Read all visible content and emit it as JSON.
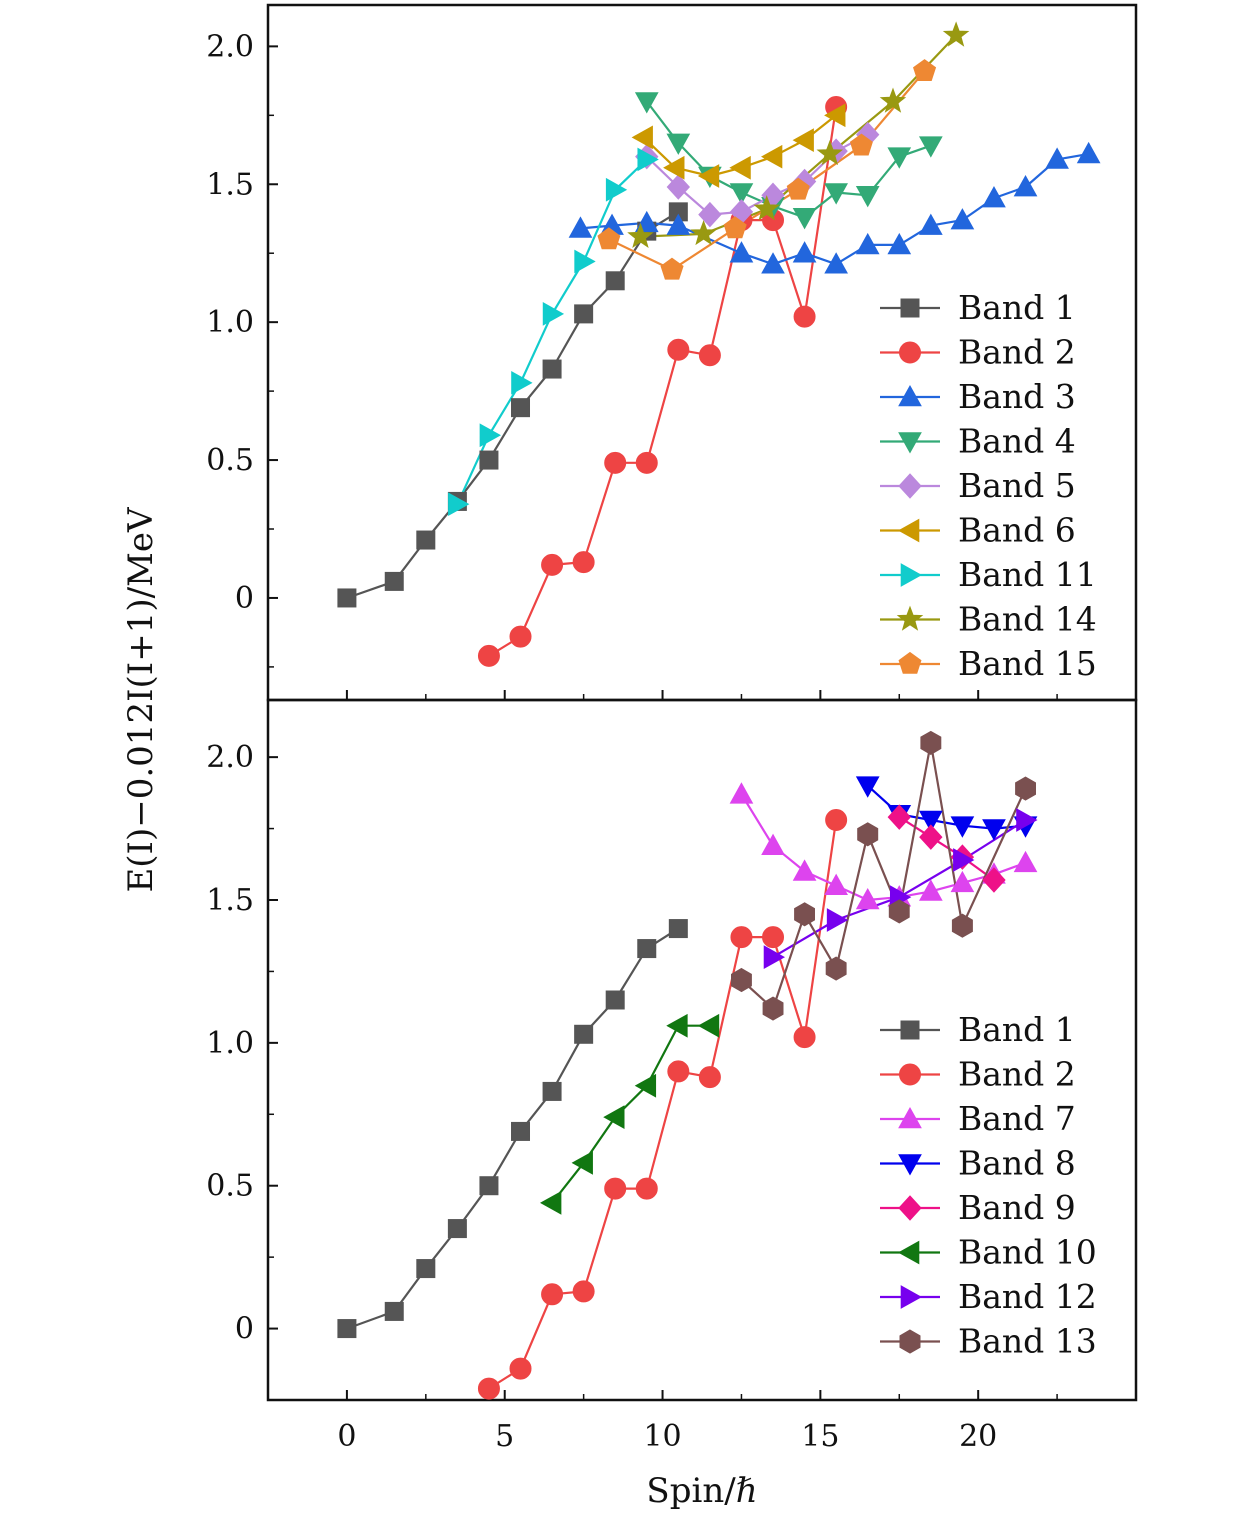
{
  "figure": {
    "ylabel": "E(I)−0.012I(I+1)/MeV",
    "xlabel": "Spin/ℏ",
    "xlim": [
      -2.5,
      25
    ],
    "xticks": [
      0,
      5,
      10,
      15,
      20
    ],
    "xtick_labels": [
      "0",
      "5",
      "10",
      "15",
      "20"
    ]
  },
  "colors": {
    "band1": "#555555",
    "band2": "#EE4444",
    "band3": "#2266DD",
    "band4": "#33AA77",
    "band5": "#BB88DD",
    "band6": "#CC9900",
    "band7": "#DD44EE",
    "band8": "#0000EE",
    "band9": "#EE1188",
    "band10": "#117711",
    "band11": "#11CCCC",
    "band12": "#7700EE",
    "band13": "#7A5050",
    "band14": "#999911",
    "band15": "#EE8833"
  },
  "chart_data": [
    {
      "type": "line",
      "panel": "top",
      "ylim": [
        -0.37,
        2.15
      ],
      "yticks": [
        0,
        0.5,
        1.0,
        1.5,
        2.0
      ],
      "ytick_labels": [
        "0",
        "0.5",
        "1.0",
        "1.5",
        "2.0"
      ],
      "legend_position": "lower-right",
      "series": [
        {
          "name": "Band 1",
          "color": "band1",
          "marker": "square",
          "x": [
            0,
            1.5,
            2.5,
            3.5,
            4.5,
            5.5,
            6.5,
            7.5,
            8.5,
            9.5,
            10.5
          ],
          "y": [
            0.0,
            0.06,
            0.21,
            0.35,
            0.5,
            0.69,
            0.83,
            1.03,
            1.15,
            1.33,
            1.4
          ]
        },
        {
          "name": "Band 2",
          "color": "band2",
          "marker": "circle",
          "x": [
            4.5,
            5.5,
            6.5,
            7.5,
            8.5,
            9.5,
            10.5,
            11.5,
            12.5,
            13.5,
            14.5,
            15.5
          ],
          "y": [
            -0.21,
            -0.14,
            0.12,
            0.13,
            0.49,
            0.49,
            0.9,
            0.88,
            1.37,
            1.37,
            1.02,
            1.78
          ]
        },
        {
          "name": "Band 3",
          "color": "band3",
          "marker": "triangle-up",
          "x": [
            7.4,
            8.4,
            9.5,
            10.5,
            12.5,
            13.5,
            14.5,
            15.5,
            16.5,
            17.5,
            18.5,
            19.5,
            20.5,
            21.5,
            22.5,
            23.5
          ],
          "y": [
            1.34,
            1.35,
            1.36,
            1.35,
            1.25,
            1.21,
            1.25,
            1.21,
            1.28,
            1.28,
            1.35,
            1.37,
            1.45,
            1.49,
            1.59,
            1.61
          ]
        },
        {
          "name": "Band 4",
          "color": "band4",
          "marker": "triangle-down",
          "x": [
            9.5,
            10.5,
            11.5,
            12.5,
            13.5,
            14.5,
            15.5,
            16.5,
            17.5,
            18.5
          ],
          "y": [
            1.8,
            1.65,
            1.53,
            1.47,
            1.42,
            1.38,
            1.47,
            1.46,
            1.6,
            1.64
          ]
        },
        {
          "name": "Band 5",
          "color": "band5",
          "marker": "diamond",
          "x": [
            9.5,
            10.5,
            11.5,
            12.5,
            13.5,
            14.5,
            15.5,
            16.5
          ],
          "y": [
            1.6,
            1.49,
            1.39,
            1.4,
            1.46,
            1.51,
            1.62,
            1.68
          ]
        },
        {
          "name": "Band 6",
          "color": "band6",
          "marker": "triangle-left",
          "x": [
            9.4,
            10.4,
            11.5,
            12.5,
            13.5,
            14.5,
            15.5
          ],
          "y": [
            1.67,
            1.56,
            1.53,
            1.56,
            1.6,
            1.66,
            1.75
          ]
        },
        {
          "name": "Band 11",
          "color": "band11",
          "marker": "triangle-right",
          "x": [
            3.5,
            4.5,
            5.5,
            6.5,
            7.5,
            8.5,
            9.5
          ],
          "y": [
            0.34,
            0.59,
            0.78,
            1.03,
            1.22,
            1.48,
            1.59
          ]
        },
        {
          "name": "Band 14",
          "color": "band14",
          "marker": "star",
          "x": [
            9.3,
            11.3,
            13.3,
            15.3,
            17.3,
            19.3
          ],
          "y": [
            1.31,
            1.32,
            1.41,
            1.61,
            1.8,
            2.04
          ]
        },
        {
          "name": "Band 15",
          "color": "band15",
          "marker": "pentagon",
          "x": [
            8.3,
            10.3,
            12.3,
            14.3,
            16.3,
            18.3
          ],
          "y": [
            1.3,
            1.19,
            1.34,
            1.48,
            1.64,
            1.91
          ]
        }
      ]
    },
    {
      "type": "line",
      "panel": "bottom",
      "ylim": [
        -0.25,
        2.2
      ],
      "yticks": [
        0,
        0.5,
        1.0,
        1.5,
        2.0
      ],
      "ytick_labels": [
        "0",
        "0.5",
        "1.0",
        "1.5",
        "2.0"
      ],
      "legend_position": "lower-right",
      "series": [
        {
          "name": "Band 1",
          "color": "band1",
          "marker": "square",
          "x": [
            0,
            1.5,
            2.5,
            3.5,
            4.5,
            5.5,
            6.5,
            7.5,
            8.5,
            9.5,
            10.5
          ],
          "y": [
            0.0,
            0.06,
            0.21,
            0.35,
            0.5,
            0.69,
            0.83,
            1.03,
            1.15,
            1.33,
            1.4
          ]
        },
        {
          "name": "Band 2",
          "color": "band2",
          "marker": "circle",
          "x": [
            4.5,
            5.5,
            6.5,
            7.5,
            8.5,
            9.5,
            10.5,
            11.5,
            12.5,
            13.5,
            14.5,
            15.5
          ],
          "y": [
            -0.21,
            -0.14,
            0.12,
            0.13,
            0.49,
            0.49,
            0.9,
            0.88,
            1.37,
            1.37,
            1.02,
            1.78
          ]
        },
        {
          "name": "Band 7",
          "color": "band7",
          "marker": "triangle-up",
          "x": [
            12.5,
            13.5,
            14.5,
            15.5,
            16.5,
            17.5,
            18.5,
            19.5,
            20.5,
            21.5
          ],
          "y": [
            1.87,
            1.69,
            1.6,
            1.55,
            1.5,
            1.51,
            1.53,
            1.56,
            1.59,
            1.63
          ]
        },
        {
          "name": "Band 8",
          "color": "band8",
          "marker": "triangle-down",
          "x": [
            16.5,
            17.5,
            18.5,
            19.5,
            20.5,
            21.5
          ],
          "y": [
            1.9,
            1.8,
            1.78,
            1.76,
            1.75,
            1.76
          ]
        },
        {
          "name": "Band 9",
          "color": "band9",
          "marker": "diamond",
          "x": [
            17.5,
            18.5,
            19.5,
            20.5
          ],
          "y": [
            1.79,
            1.72,
            1.65,
            1.57
          ]
        },
        {
          "name": "Band 10",
          "color": "band10",
          "marker": "triangle-left",
          "x": [
            6.5,
            7.5,
            8.5,
            9.5,
            10.5,
            11.5
          ],
          "y": [
            0.44,
            0.58,
            0.74,
            0.85,
            1.06,
            1.06
          ]
        },
        {
          "name": "Band 12",
          "color": "band12",
          "marker": "triangle-right",
          "x": [
            13.5,
            15.5,
            17.5,
            19.5,
            21.5
          ],
          "y": [
            1.3,
            1.43,
            1.51,
            1.64,
            1.78
          ]
        },
        {
          "name": "Band 13",
          "color": "band13",
          "marker": "hexagon",
          "x": [
            12.5,
            13.5,
            14.5,
            15.5,
            16.5,
            17.5,
            18.5,
            19.5,
            21.5
          ],
          "y": [
            1.22,
            1.12,
            1.45,
            1.26,
            1.73,
            1.46,
            2.05,
            1.41,
            1.89
          ]
        }
      ]
    }
  ]
}
